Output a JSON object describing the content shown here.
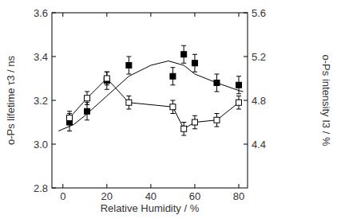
{
  "chart_data": {
    "type": "scatter",
    "xlabel": "Relative Humidity / %",
    "ylabel": "o-Ps lifetime τ3 / ns",
    "y2label": "o-Ps intensity I3 / %",
    "xlim": [
      -5,
      84
    ],
    "xticks": [
      0,
      20,
      40,
      60,
      80
    ],
    "ylim": [
      2.8,
      3.6
    ],
    "yticks": [
      {
        "value": 2.8,
        "label": "2.8"
      },
      {
        "value": 3.0,
        "label": "3.0"
      },
      {
        "value": 3.2,
        "label": "3.2"
      },
      {
        "value": 3.4,
        "label": "3.4"
      },
      {
        "value": 3.6,
        "label": "3.6"
      }
    ],
    "y2lim": [
      4.0,
      5.6
    ],
    "y2ticks": [
      4.4,
      {
        "value": 4.8,
        "label": "4.8"
      },
      5.2,
      5.6
    ],
    "grid": false,
    "series": [
      {
        "type": "scatter",
        "marker": "square",
        "color": "#000000",
        "x": [
          3,
          11,
          20,
          30,
          50,
          55,
          60,
          70,
          80
        ],
        "values": [
          3.1,
          3.15,
          3.29,
          3.36,
          3.31,
          3.41,
          3.37,
          3.28,
          3.27
        ],
        "errors": [
          0.04,
          0.04,
          0.04,
          0.04,
          0.04,
          0.04,
          0.04,
          0.04,
          0.04
        ]
      },
      {
        "type": "line",
        "line_style": "solid",
        "color": "#000000",
        "x": [
          -2,
          5,
          10,
          20,
          30,
          40,
          48,
          55,
          60,
          70,
          80,
          82
        ],
        "values": [
          3.06,
          3.09,
          3.13,
          3.22,
          3.31,
          3.36,
          3.38,
          3.36,
          3.32,
          3.28,
          3.245,
          3.24
        ]
      },
      {
        "type": "line",
        "line_style": "solid",
        "marker": "open-square",
        "color": "#000000",
        "axis": "y2",
        "x": [
          3,
          11,
          20,
          30,
          50,
          55,
          60,
          70,
          80
        ],
        "values": [
          4.64,
          4.82,
          5.0,
          4.78,
          4.74,
          4.54,
          4.6,
          4.62,
          4.78
        ],
        "errors": [
          0.06,
          0.06,
          0.06,
          0.06,
          0.06,
          0.06,
          0.06,
          0.06,
          0.06
        ]
      }
    ]
  }
}
